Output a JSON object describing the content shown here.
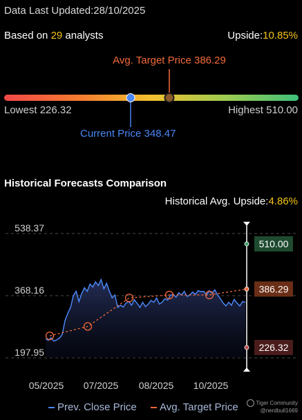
{
  "header": {
    "updated_label": "Data Last Updated:",
    "updated_date": "28/10/2025",
    "based_prefix": "Based on ",
    "analyst_count": "29",
    "based_suffix": " analysts",
    "upside_label": "Upside:",
    "upside_value": "10.85%"
  },
  "gauge": {
    "avg_target_label": "Avg. Target Price 386.29",
    "lowest_label": "Lowest 226.32",
    "highest_label": "Highest 510.00",
    "current_label": "Current Price 348.47",
    "low": 226.32,
    "high": 510.0,
    "current": 348.47,
    "avg_target": 386.29
  },
  "historical": {
    "title": "Historical Forecasts Comparison",
    "upside_label": "Historical Avg. Upside:",
    "upside_value": "4.86%"
  },
  "legend": {
    "prev_close": "Prev. Close Price",
    "avg_target": "Avg. Target Price"
  },
  "watermark": {
    "brand": "Tiger Community",
    "user": "@nerdbull1669"
  },
  "colors": {
    "accent_yellow": "#f5c518",
    "avg_target_orange": "#f26a3a",
    "current_blue": "#4a86f5",
    "high_green": "#3ea06a",
    "low_red": "#c04848"
  },
  "chart_data": {
    "type": "line",
    "title": "Historical Forecasts Comparison",
    "y_ticks": [
      "538.37",
      "368.16",
      "197.95"
    ],
    "ylim": [
      197.95,
      538.37
    ],
    "x_ticks": [
      "05/2025",
      "07/2025",
      "08/2025",
      "10/2025"
    ],
    "series": [
      {
        "name": "Prev. Close Price",
        "color": "#4a86f5",
        "values": [
          250,
          246,
          253,
          244,
          247,
          252,
          262,
          300,
          320,
          336,
          368,
          380,
          352,
          374,
          390,
          380,
          400,
          392,
          406,
          396,
          412,
          387,
          402,
          380,
          362,
          370,
          336,
          342,
          337,
          348,
          352,
          342,
          357,
          347,
          336,
          350,
          338,
          345,
          355,
          350,
          362,
          345,
          350,
          360,
          356,
          369,
          372,
          364,
          376,
          370,
          380,
          366,
          370,
          378,
          372,
          382,
          379,
          380,
          370,
          382,
          375,
          384,
          370,
          360,
          348,
          340,
          350,
          342,
          358,
          348,
          340,
          352,
          350
        ]
      },
      {
        "name": "Avg. Target Price",
        "color": "#f26a3a",
        "points": [
          258,
          284,
          362,
          370,
          370,
          386.29
        ]
      }
    ],
    "markers": {
      "high": {
        "label": "510.00",
        "value": 510.0
      },
      "avg_target": {
        "label": "386.29",
        "value": 386.29
      },
      "low": {
        "label": "226.32",
        "value": 226.32
      }
    }
  }
}
